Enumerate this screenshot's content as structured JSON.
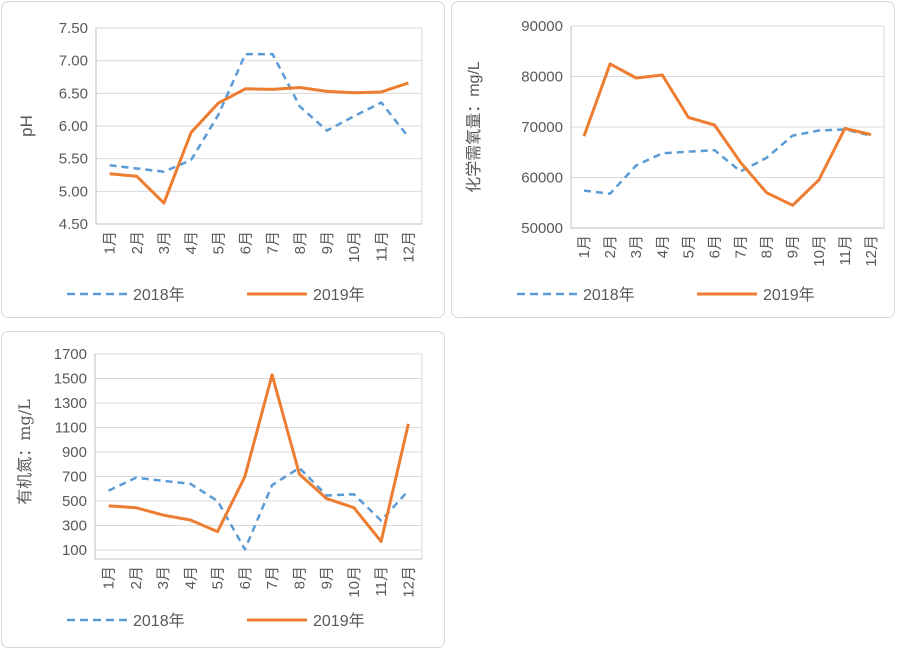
{
  "page": {
    "background": "#FFFFFF"
  },
  "colors": {
    "series_2018": "#5B9BD5",
    "series_2019": "#ED7D31",
    "gridline": "#D9D9D9",
    "axis_line": "#BFBFBF",
    "axis_text": "#595959",
    "chart_border": "#D9D9D9"
  },
  "legend": {
    "item_2018": "2018年",
    "item_2019": "2019年"
  },
  "chart_data": [
    {
      "type": "line",
      "title": "",
      "ylabel": "pH",
      "xlabel": "",
      "categories": [
        "1月",
        "2月",
        "3月",
        "4月",
        "5月",
        "6月",
        "7月",
        "8月",
        "9月",
        "10月",
        "11月",
        "12月"
      ],
      "ylim": [
        4.5,
        7.5
      ],
      "ytick_step": 0.5,
      "ytick_labels": [
        "4.50",
        "5.00",
        "5.50",
        "6.00",
        "6.50",
        "7.00",
        "7.50"
      ],
      "grid": true,
      "legend_position": "bottom",
      "series": [
        {
          "name": "2018年",
          "style": "dashed",
          "color": "#5B9BD5",
          "values": [
            5.4,
            5.35,
            5.3,
            5.48,
            6.17,
            7.1,
            7.1,
            6.3,
            5.93,
            6.15,
            6.36,
            5.83
          ]
        },
        {
          "name": "2019年",
          "style": "solid",
          "color": "#ED7D31",
          "values": [
            5.27,
            5.23,
            4.82,
            5.9,
            6.35,
            6.57,
            6.56,
            6.59,
            6.53,
            6.51,
            6.52,
            6.66
          ]
        }
      ]
    },
    {
      "type": "line",
      "title": "",
      "ylabel": "化学需氧量：mg/L",
      "xlabel": "",
      "categories": [
        "1月",
        "2月",
        "3月",
        "4月",
        "5月",
        "6月",
        "7月",
        "8月",
        "9月",
        "10月",
        "11月",
        "12月"
      ],
      "ylim": [
        50000,
        90000
      ],
      "ytick_step": 10000,
      "ytick_labels": [
        "50000",
        "60000",
        "70000",
        "80000",
        "90000"
      ],
      "grid": true,
      "legend_position": "bottom",
      "series": [
        {
          "name": "2018年",
          "style": "dashed",
          "color": "#5B9BD5",
          "values": [
            57400,
            56800,
            62400,
            64800,
            65100,
            65400,
            61200,
            63900,
            68300,
            69300,
            69500,
            68300
          ]
        },
        {
          "name": "2019年",
          "style": "solid",
          "color": "#ED7D31",
          "values": [
            68200,
            82500,
            79700,
            80300,
            71900,
            70400,
            63000,
            57000,
            54500,
            59500,
            69700,
            68500
          ]
        }
      ]
    },
    {
      "type": "line",
      "title": "",
      "ylabel": "有机氮：mg/L",
      "xlabel": "",
      "categories": [
        "1月",
        "2月",
        "3月",
        "4月",
        "5月",
        "6月",
        "7月",
        "8月",
        "9月",
        "10月",
        "11月",
        "12月"
      ],
      "ylim": [
        100,
        1700
      ],
      "ytick_step": 200,
      "ytick_labels": [
        "100",
        "300",
        "500",
        "700",
        "900",
        "1100",
        "1300",
        "1500",
        "1700"
      ],
      "grid": true,
      "legend_position": "bottom",
      "series": [
        {
          "name": "2018年",
          "style": "dashed",
          "color": "#5B9BD5",
          "values": [
            585,
            690,
            665,
            640,
            500,
            105,
            630,
            770,
            545,
            555,
            340,
            585
          ]
        },
        {
          "name": "2019年",
          "style": "solid",
          "color": "#ED7D31",
          "values": [
            460,
            445,
            385,
            345,
            250,
            700,
            1530,
            720,
            520,
            445,
            170,
            1130
          ]
        }
      ]
    }
  ]
}
